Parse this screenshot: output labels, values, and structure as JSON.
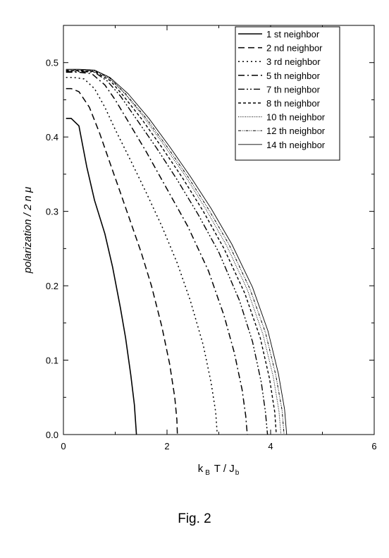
{
  "caption": "Fig. 2",
  "chart_data": {
    "type": "line",
    "xlabel": "k B T / J b",
    "xlabel_parts": {
      "k": "k",
      "k_sub": "B",
      "mid": " T / J",
      "j_sub": "b"
    },
    "ylabel": "polarization / 2 n μ",
    "xlim": [
      0,
      6
    ],
    "ylim": [
      0,
      0.55
    ],
    "x_ticks": [
      0,
      2,
      4,
      6
    ],
    "x_tick_labels": [
      "0",
      "2",
      "4",
      "6"
    ],
    "y_ticks": [
      0.0,
      0.1,
      0.2,
      0.3,
      0.4,
      0.5
    ],
    "y_tick_labels": [
      "0.0",
      "0.1",
      "0.2",
      "0.3",
      "0.4",
      "0.5"
    ],
    "grid": false,
    "legend_position": "top-right",
    "series": [
      {
        "name": "1 st neighbor",
        "style": "solid",
        "x": [
          0.05,
          0.15,
          0.3,
          0.45,
          0.6,
          0.8,
          0.95,
          1.1,
          1.2,
          1.3,
          1.37,
          1.4,
          1.41
        ],
        "y": [
          0.425,
          0.425,
          0.415,
          0.36,
          0.315,
          0.27,
          0.225,
          0.17,
          0.13,
          0.08,
          0.04,
          0.01,
          0.0
        ]
      },
      {
        "name": "2 nd neighbor",
        "style": "dashed",
        "x": [
          0.05,
          0.15,
          0.3,
          0.5,
          0.7,
          0.9,
          1.1,
          1.3,
          1.5,
          1.7,
          1.9,
          2.05,
          2.15,
          2.19,
          2.2
        ],
        "y": [
          0.465,
          0.465,
          0.461,
          0.44,
          0.405,
          0.365,
          0.325,
          0.285,
          0.245,
          0.2,
          0.145,
          0.095,
          0.05,
          0.02,
          0.0
        ]
      },
      {
        "name": "3 rd neighbor",
        "style": "dotted",
        "x": [
          0.05,
          0.2,
          0.4,
          0.6,
          0.8,
          1.0,
          1.3,
          1.6,
          1.9,
          2.2,
          2.45,
          2.7,
          2.85,
          2.94,
          2.97
        ],
        "y": [
          0.48,
          0.48,
          0.478,
          0.465,
          0.44,
          0.41,
          0.368,
          0.325,
          0.28,
          0.23,
          0.18,
          0.12,
          0.07,
          0.03,
          0.0
        ]
      },
      {
        "name": "5 th neighbor",
        "style": "dashdot",
        "x": [
          0.05,
          0.3,
          0.55,
          0.8,
          1.0,
          1.3,
          1.6,
          2.0,
          2.4,
          2.8,
          3.1,
          3.3,
          3.45,
          3.52,
          3.55
        ],
        "y": [
          0.487,
          0.487,
          0.485,
          0.47,
          0.45,
          0.415,
          0.38,
          0.33,
          0.28,
          0.22,
          0.16,
          0.11,
          0.06,
          0.025,
          0.0
        ]
      },
      {
        "name": "7 th neighbor",
        "style": "dashdotdot",
        "x": [
          0.05,
          0.3,
          0.6,
          0.85,
          1.1,
          1.4,
          1.8,
          2.2,
          2.6,
          3.0,
          3.4,
          3.65,
          3.82,
          3.9,
          3.94
        ],
        "y": [
          0.488,
          0.488,
          0.487,
          0.475,
          0.455,
          0.425,
          0.385,
          0.342,
          0.296,
          0.245,
          0.18,
          0.125,
          0.07,
          0.03,
          0.0
        ]
      },
      {
        "name": "8 th neighbor",
        "style": "shortdash",
        "x": [
          0.05,
          0.3,
          0.6,
          0.9,
          1.15,
          1.5,
          1.9,
          2.3,
          2.7,
          3.1,
          3.5,
          3.8,
          3.98,
          4.08,
          4.11
        ],
        "y": [
          0.489,
          0.489,
          0.488,
          0.476,
          0.456,
          0.425,
          0.386,
          0.345,
          0.3,
          0.25,
          0.19,
          0.13,
          0.075,
          0.03,
          0.0
        ]
      },
      {
        "name": "10 th neighbor",
        "style": "fine-dotted",
        "x": [
          0.05,
          0.3,
          0.6,
          0.9,
          1.2,
          1.55,
          1.95,
          2.35,
          2.75,
          3.15,
          3.55,
          3.85,
          4.05,
          4.16,
          4.2
        ],
        "y": [
          0.49,
          0.49,
          0.489,
          0.478,
          0.457,
          0.427,
          0.388,
          0.348,
          0.303,
          0.254,
          0.195,
          0.135,
          0.078,
          0.032,
          0.0
        ]
      },
      {
        "name": "12 th neighbor",
        "style": "fine-dashdotdot",
        "x": [
          0.05,
          0.3,
          0.6,
          0.9,
          1.2,
          1.6,
          2.0,
          2.4,
          2.8,
          3.2,
          3.6,
          3.9,
          4.1,
          4.22,
          4.26
        ],
        "y": [
          0.49,
          0.49,
          0.489,
          0.479,
          0.458,
          0.425,
          0.387,
          0.347,
          0.303,
          0.255,
          0.196,
          0.137,
          0.08,
          0.033,
          0.0
        ]
      },
      {
        "name": "14 th neighbor",
        "style": "thin-solid",
        "x": [
          0.05,
          0.3,
          0.6,
          0.9,
          1.25,
          1.65,
          2.05,
          2.45,
          2.85,
          3.25,
          3.65,
          3.95,
          4.15,
          4.27,
          4.31
        ],
        "y": [
          0.491,
          0.491,
          0.49,
          0.48,
          0.458,
          0.425,
          0.387,
          0.347,
          0.304,
          0.256,
          0.198,
          0.139,
          0.082,
          0.034,
          0.0
        ]
      }
    ]
  }
}
